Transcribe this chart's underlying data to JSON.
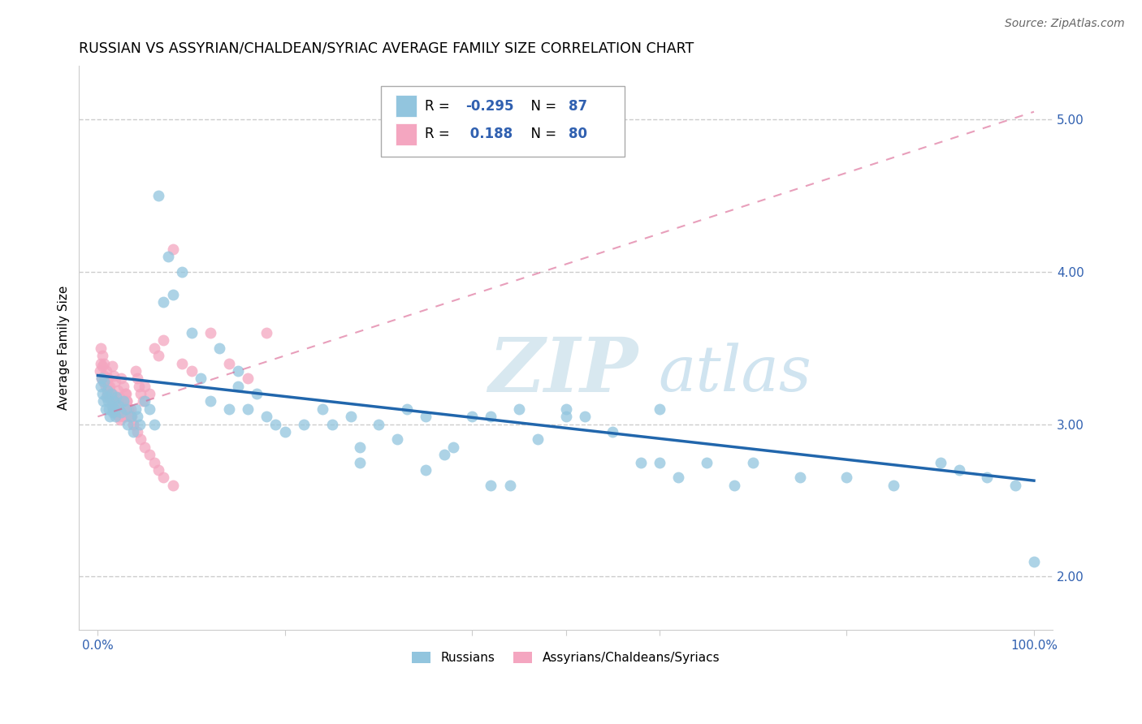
{
  "title": "RUSSIAN VS ASSYRIAN/CHALDEAN/SYRIAC AVERAGE FAMILY SIZE CORRELATION CHART",
  "source": "Source: ZipAtlas.com",
  "ylabel": "Average Family Size",
  "ylim": [
    1.65,
    5.35
  ],
  "xlim": [
    -0.02,
    1.02
  ],
  "yticks": [
    2.0,
    3.0,
    4.0,
    5.0
  ],
  "blue_color": "#92c5de",
  "pink_color": "#f4a6c0",
  "blue_line_color": "#2166ac",
  "pink_line_color": "#d95f8e",
  "tick_color": "#3060b0",
  "grid_color": "#cccccc",
  "title_fontsize": 12.5,
  "ylabel_fontsize": 11,
  "source_fontsize": 10,
  "blue_line_x0": 0.0,
  "blue_line_x1": 1.0,
  "blue_line_y0": 3.32,
  "blue_line_y1": 2.63,
  "pink_line_x0": 0.0,
  "pink_line_x1": 1.0,
  "pink_line_y0": 3.05,
  "pink_line_y1": 5.05,
  "blue_scatter_x": [
    0.003,
    0.004,
    0.005,
    0.006,
    0.007,
    0.008,
    0.009,
    0.01,
    0.011,
    0.012,
    0.013,
    0.014,
    0.015,
    0.016,
    0.017,
    0.018,
    0.019,
    0.02,
    0.022,
    0.025,
    0.027,
    0.03,
    0.032,
    0.035,
    0.038,
    0.04,
    0.042,
    0.045,
    0.05,
    0.055,
    0.06,
    0.07,
    0.075,
    0.08,
    0.09,
    0.1,
    0.11,
    0.12,
    0.13,
    0.14,
    0.15,
    0.16,
    0.17,
    0.18,
    0.19,
    0.2,
    0.22,
    0.24,
    0.25,
    0.27,
    0.28,
    0.3,
    0.32,
    0.33,
    0.35,
    0.37,
    0.38,
    0.4,
    0.42,
    0.44,
    0.45,
    0.47,
    0.5,
    0.52,
    0.55,
    0.58,
    0.6,
    0.62,
    0.65,
    0.68,
    0.7,
    0.75,
    0.8,
    0.85,
    0.9,
    0.92,
    0.95,
    0.98,
    1.0,
    0.065,
    0.15,
    0.28,
    0.35,
    0.42,
    0.5,
    0.6
  ],
  "blue_scatter_y": [
    3.25,
    3.3,
    3.2,
    3.15,
    3.28,
    3.1,
    3.18,
    3.22,
    3.15,
    3.1,
    3.05,
    3.2,
    3.12,
    3.08,
    3.15,
    3.1,
    3.05,
    3.18,
    3.12,
    3.08,
    3.15,
    3.1,
    3.0,
    3.05,
    2.95,
    3.1,
    3.05,
    3.0,
    3.15,
    3.1,
    3.0,
    3.8,
    4.1,
    3.85,
    4.0,
    3.6,
    3.3,
    3.15,
    3.5,
    3.1,
    3.25,
    3.1,
    3.2,
    3.05,
    3.0,
    2.95,
    3.0,
    3.1,
    3.0,
    3.05,
    2.85,
    3.0,
    2.9,
    3.1,
    3.05,
    2.8,
    2.85,
    3.05,
    3.05,
    2.6,
    3.1,
    2.9,
    3.05,
    3.05,
    2.95,
    2.75,
    2.75,
    2.65,
    2.75,
    2.6,
    2.75,
    2.65,
    2.65,
    2.6,
    2.75,
    2.7,
    2.65,
    2.6,
    2.1,
    4.5,
    3.35,
    2.75,
    2.7,
    2.6,
    3.1,
    3.1
  ],
  "pink_scatter_x": [
    0.002,
    0.003,
    0.004,
    0.005,
    0.006,
    0.007,
    0.008,
    0.009,
    0.01,
    0.011,
    0.012,
    0.013,
    0.014,
    0.015,
    0.016,
    0.017,
    0.018,
    0.019,
    0.02,
    0.021,
    0.022,
    0.023,
    0.024,
    0.025,
    0.026,
    0.027,
    0.028,
    0.029,
    0.03,
    0.031,
    0.032,
    0.033,
    0.034,
    0.035,
    0.036,
    0.038,
    0.04,
    0.042,
    0.044,
    0.046,
    0.048,
    0.05,
    0.055,
    0.06,
    0.065,
    0.07,
    0.08,
    0.09,
    0.1,
    0.12,
    0.14,
    0.16,
    0.18,
    0.003,
    0.005,
    0.007,
    0.009,
    0.011,
    0.013,
    0.015,
    0.017,
    0.019,
    0.021,
    0.023,
    0.025,
    0.027,
    0.029,
    0.031,
    0.033,
    0.035,
    0.038,
    0.042,
    0.046,
    0.05,
    0.055,
    0.06,
    0.065,
    0.07,
    0.08
  ],
  "pink_scatter_y": [
    3.35,
    3.4,
    3.3,
    3.38,
    3.28,
    3.32,
    3.25,
    3.3,
    3.2,
    3.25,
    3.18,
    3.22,
    3.15,
    3.2,
    3.1,
    3.15,
    3.08,
    3.12,
    3.15,
    3.1,
    3.05,
    3.1,
    3.03,
    3.12,
    3.08,
    3.05,
    3.1,
    3.05,
    3.2,
    3.15,
    3.1,
    3.08,
    3.05,
    3.1,
    3.05,
    3.0,
    3.35,
    3.3,
    3.25,
    3.2,
    3.15,
    3.25,
    3.2,
    3.5,
    3.45,
    3.55,
    4.15,
    3.4,
    3.35,
    3.6,
    3.4,
    3.3,
    3.6,
    3.5,
    3.45,
    3.4,
    3.35,
    3.3,
    3.25,
    3.38,
    3.32,
    3.28,
    3.22,
    3.18,
    3.3,
    3.25,
    3.2,
    3.15,
    3.1,
    3.05,
    3.0,
    2.95,
    2.9,
    2.85,
    2.8,
    2.75,
    2.7,
    2.65,
    2.6
  ],
  "legend_label1": "Russians",
  "legend_label2": "Assyrians/Chaldeans/Syriacs"
}
